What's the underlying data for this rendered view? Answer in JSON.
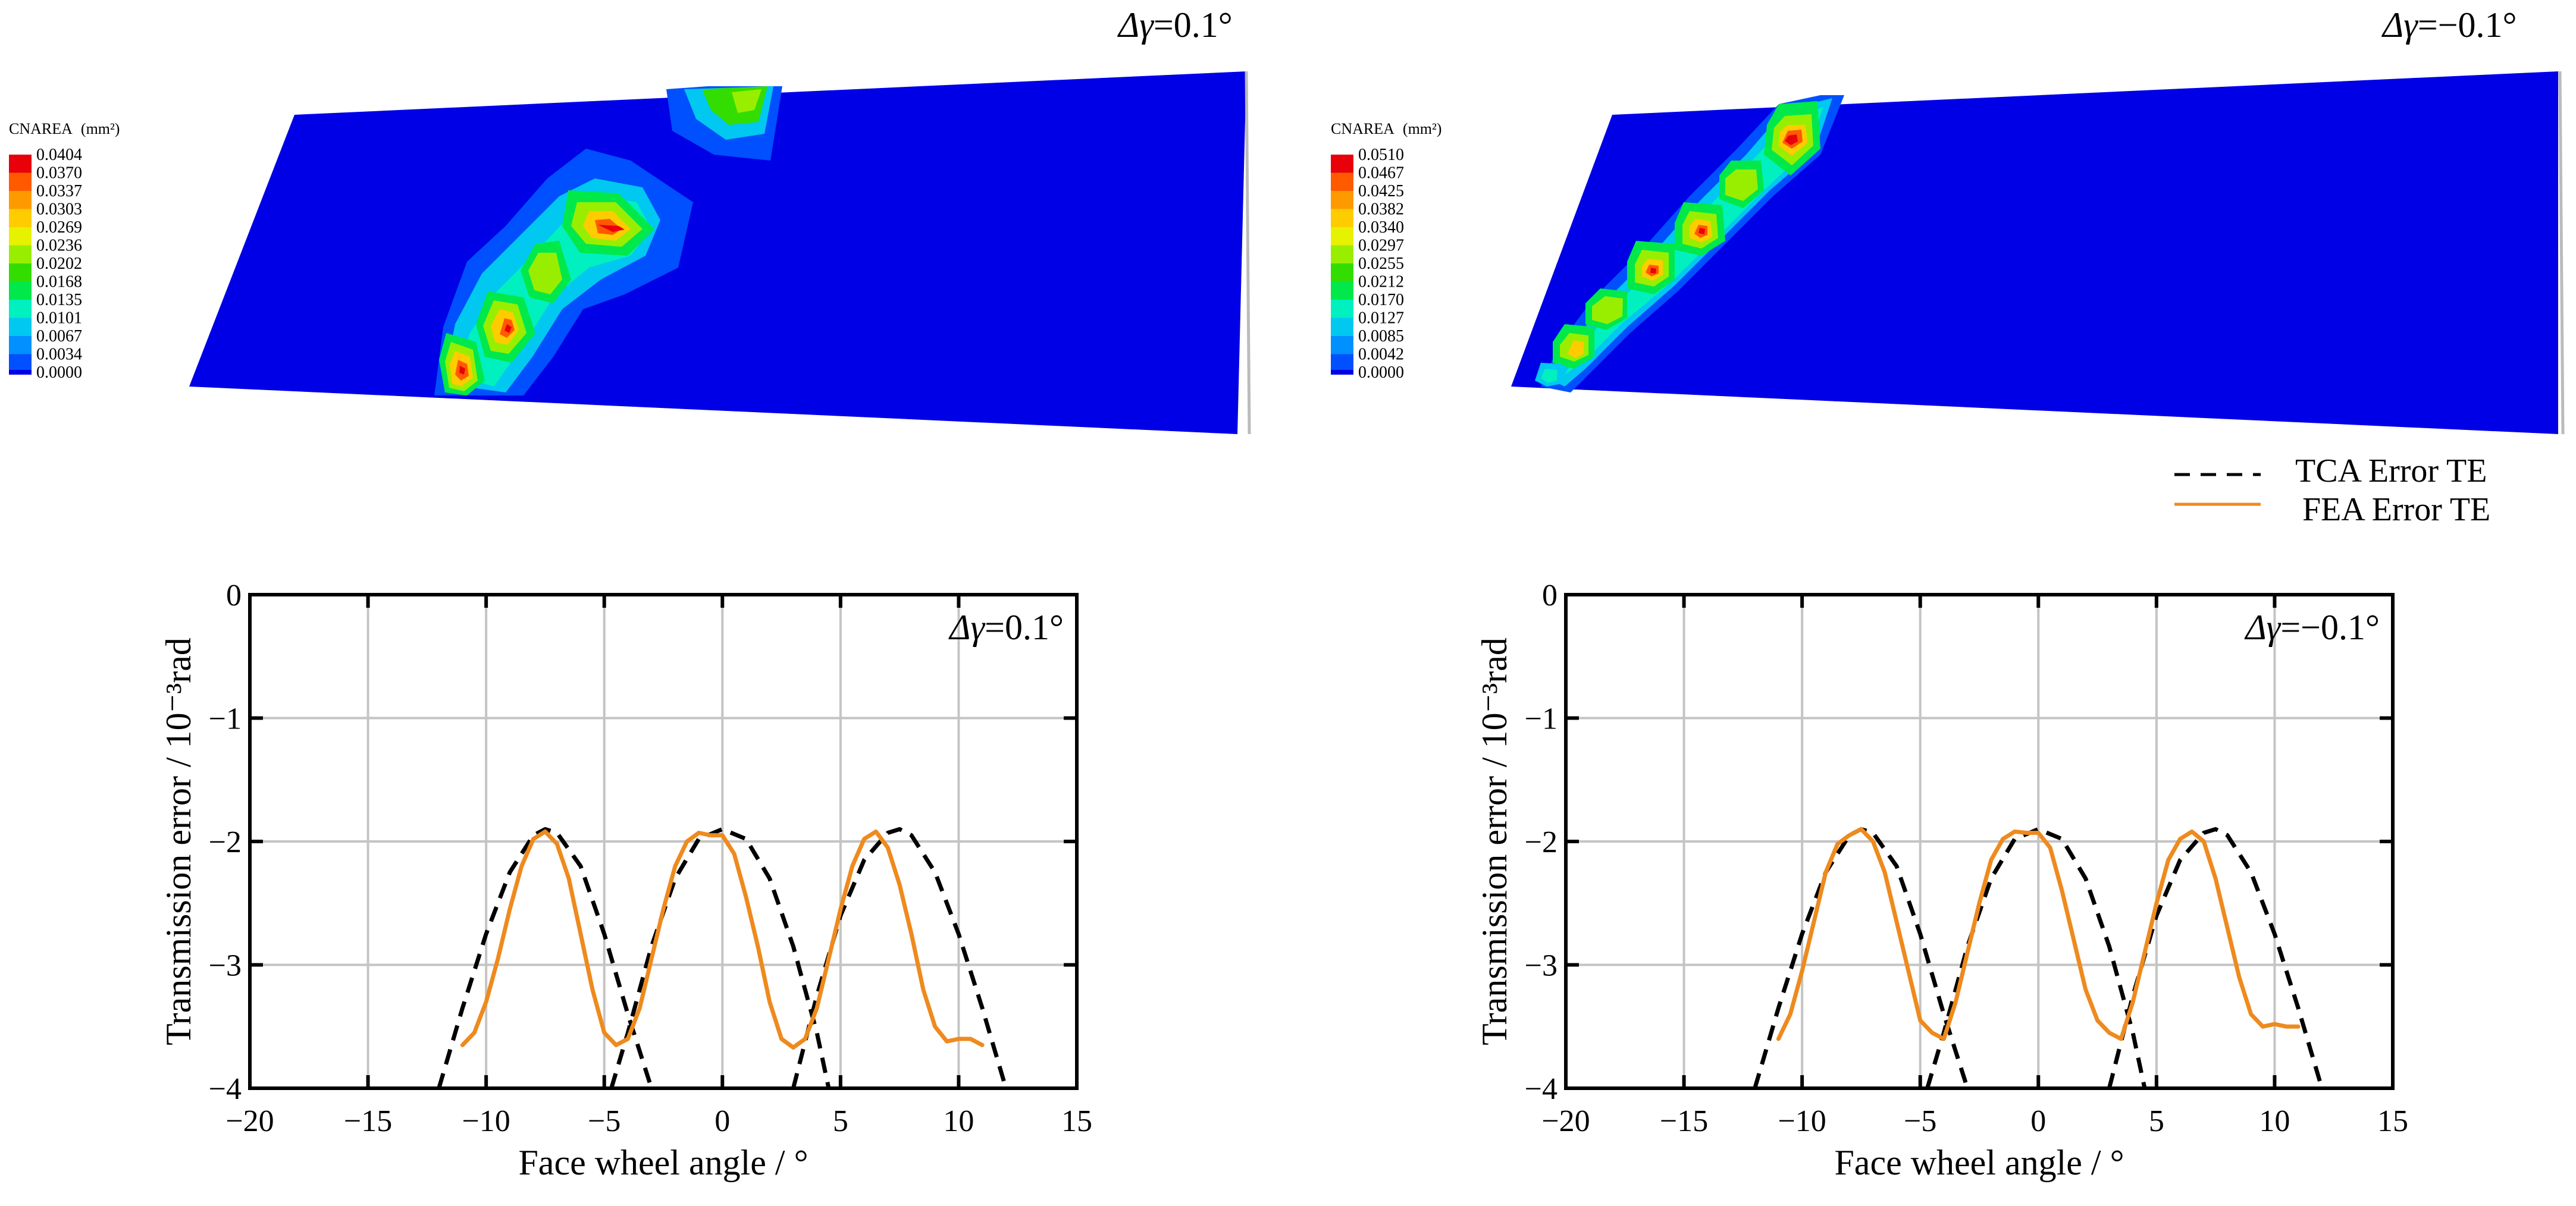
{
  "contour_plots": [
    {
      "title_prefix": "Δγ",
      "title_value": "=0.1°",
      "legend_title": "CNAREA",
      "legend_unit": "(mm²)",
      "legend_values": [
        "0.0404",
        "0.0370",
        "0.0337",
        "0.0303",
        "0.0269",
        "0.0236",
        "0.0202",
        "0.0168",
        "0.0135",
        "0.0101",
        "0.0067",
        "0.0034",
        "0.0000"
      ]
    },
    {
      "title_prefix": "Δγ",
      "title_value": "=−0.1°",
      "legend_title": "CNAREA",
      "legend_unit": "(mm²)",
      "legend_values": [
        "0.0510",
        "0.0467",
        "0.0425",
        "0.0382",
        "0.0340",
        "0.0297",
        "0.0255",
        "0.0212",
        "0.0170",
        "0.0127",
        "0.0085",
        "0.0042",
        "0.0000"
      ]
    }
  ],
  "legend_colors": [
    "#e8000b",
    "#ff5a00",
    "#ff9900",
    "#ffcc00",
    "#e6f200",
    "#99ee00",
    "#33dd00",
    "#00e84a",
    "#00f0c0",
    "#00c8f0",
    "#0090ff",
    "#0050ff",
    "#0000e6"
  ],
  "colors": {
    "plate": "#0000e6",
    "tca": "#000000",
    "fea": "#ee8a1e",
    "grid": "#c4c4c4"
  },
  "line_legend": {
    "tca": "TCA Error TE",
    "fea": "FEA Error TE"
  },
  "chart_data": [
    {
      "type": "line",
      "annotation": "Δγ=0.1°",
      "annotation_prefix": "Δγ",
      "annotation_value": "=0.1°",
      "xlabel": "Face wheel angle / °",
      "ylabel": "Transmission error / 10⁻³rad",
      "xlim": [
        -20,
        15
      ],
      "ylim": [
        -4,
        0
      ],
      "xticks": [
        "−20",
        "−15",
        "−10",
        "−5",
        "0",
        "5",
        "10",
        "15"
      ],
      "yticks": [
        "0",
        "−1",
        "−2",
        "−3",
        "−4"
      ],
      "xtick_values": [
        -20,
        -15,
        -10,
        -5,
        0,
        5,
        10,
        15
      ],
      "ytick_values": [
        0,
        -1,
        -2,
        -3,
        -4
      ],
      "grid": true,
      "series": [
        {
          "name": "TCA Error TE",
          "style": "dashed",
          "segments": [
            {
              "x": [
                -12.0,
                -11.0,
                -10.0,
                -9.0,
                -8.0,
                -7.5,
                -7.0,
                -6.0,
                -5.0,
                -4.0,
                -3.0
              ],
              "y": [
                -4.0,
                -3.35,
                -2.75,
                -2.25,
                -1.95,
                -1.9,
                -1.93,
                -2.2,
                -2.75,
                -3.4,
                -4.0
              ]
            },
            {
              "x": [
                -4.7,
                -4.0,
                -3.0,
                -2.0,
                -1.0,
                0.0,
                1.0,
                2.0,
                3.0,
                4.0,
                4.5
              ],
              "y": [
                -4.0,
                -3.55,
                -2.85,
                -2.3,
                -1.98,
                -1.9,
                -1.98,
                -2.3,
                -2.85,
                -3.55,
                -4.0
              ]
            },
            {
              "x": [
                3.0,
                4.0,
                5.0,
                6.0,
                7.0,
                7.5,
                8.0,
                9.0,
                10.0,
                11.0,
                12.0
              ],
              "y": [
                -4.0,
                -3.25,
                -2.6,
                -2.15,
                -1.93,
                -1.9,
                -1.95,
                -2.25,
                -2.75,
                -3.35,
                -4.0
              ]
            }
          ]
        },
        {
          "name": "FEA Error TE",
          "style": "solid",
          "segments": [
            {
              "x": [
                -11.0,
                -10.5,
                -10.0,
                -9.5,
                -9.0,
                -8.5,
                -8.0,
                -7.5,
                -7.0,
                -6.5,
                -6.0,
                -5.5,
                -5.0,
                -4.5,
                -4.0,
                -3.5,
                -3.0,
                -2.5,
                -2.0,
                -1.5,
                -1.0,
                -0.5,
                0.0,
                0.5,
                1.0,
                1.5,
                2.0,
                2.5,
                3.0,
                3.5,
                4.0,
                4.5,
                5.0,
                5.5,
                6.0,
                6.5,
                7.0,
                7.5,
                8.0,
                8.5,
                9.0,
                9.5,
                10.0,
                10.5,
                11.0
              ],
              "y": [
                -3.65,
                -3.55,
                -3.3,
                -2.95,
                -2.55,
                -2.2,
                -1.98,
                -1.92,
                -2.02,
                -2.3,
                -2.75,
                -3.2,
                -3.55,
                -3.65,
                -3.6,
                -3.35,
                -2.95,
                -2.55,
                -2.2,
                -2.0,
                -1.93,
                -1.95,
                -1.95,
                -2.1,
                -2.45,
                -2.85,
                -3.3,
                -3.6,
                -3.67,
                -3.6,
                -3.35,
                -2.95,
                -2.55,
                -2.2,
                -1.98,
                -1.92,
                -2.05,
                -2.35,
                -2.75,
                -3.2,
                -3.5,
                -3.62,
                -3.6,
                -3.6,
                -3.65
              ]
            }
          ]
        }
      ]
    },
    {
      "type": "line",
      "annotation": "Δγ=−0.1°",
      "annotation_prefix": "Δγ",
      "annotation_value": "=−0.1°",
      "xlabel": "Face wheel angle / °",
      "ylabel": "Transmission error / 10⁻³rad",
      "xlim": [
        -20,
        15
      ],
      "ylim": [
        -4,
        0
      ],
      "xticks": [
        "−20",
        "−15",
        "−10",
        "−5",
        "0",
        "5",
        "10",
        "15"
      ],
      "yticks": [
        "0",
        "−1",
        "−2",
        "−3",
        "−4"
      ],
      "xtick_values": [
        -20,
        -15,
        -10,
        -5,
        0,
        5,
        10,
        15
      ],
      "ytick_values": [
        0,
        -1,
        -2,
        -3,
        -4
      ],
      "grid": true,
      "series": [
        {
          "name": "TCA Error TE",
          "style": "dashed",
          "segments": [
            {
              "x": [
                -12.0,
                -11.0,
                -10.0,
                -9.0,
                -8.0,
                -7.5,
                -7.0,
                -6.0,
                -5.0,
                -4.0,
                -3.0
              ],
              "y": [
                -4.0,
                -3.35,
                -2.75,
                -2.25,
                -1.95,
                -1.9,
                -1.93,
                -2.2,
                -2.75,
                -3.4,
                -4.0
              ]
            },
            {
              "x": [
                -4.7,
                -4.0,
                -3.0,
                -2.0,
                -1.0,
                0.0,
                1.0,
                2.0,
                3.0,
                4.0,
                4.5
              ],
              "y": [
                -4.0,
                -3.55,
                -2.85,
                -2.3,
                -1.98,
                -1.9,
                -1.98,
                -2.3,
                -2.85,
                -3.55,
                -4.0
              ]
            },
            {
              "x": [
                3.0,
                4.0,
                5.0,
                6.0,
                7.0,
                7.5,
                8.0,
                9.0,
                10.0,
                11.0,
                12.0
              ],
              "y": [
                -4.0,
                -3.25,
                -2.6,
                -2.15,
                -1.93,
                -1.9,
                -1.95,
                -2.25,
                -2.75,
                -3.35,
                -4.0
              ]
            }
          ]
        },
        {
          "name": "FEA Error TE",
          "style": "solid",
          "segments": [
            {
              "x": [
                -11.0,
                -10.5,
                -10.0,
                -9.5,
                -9.0,
                -8.5,
                -8.0,
                -7.5,
                -7.0,
                -6.5,
                -6.0,
                -5.5,
                -5.0,
                -4.5,
                -4.0,
                -3.5,
                -3.0,
                -2.5,
                -2.0,
                -1.5,
                -1.0,
                -0.5,
                0.0,
                0.5,
                1.0,
                1.5,
                2.0,
                2.5,
                3.0,
                3.5,
                4.0,
                4.5,
                5.0,
                5.5,
                6.0,
                6.5,
                7.0,
                7.5,
                8.0,
                8.5,
                9.0,
                9.5,
                10.0,
                10.5,
                11.0
              ],
              "y": [
                -3.6,
                -3.4,
                -3.05,
                -2.65,
                -2.25,
                -2.02,
                -1.95,
                -1.9,
                -2.0,
                -2.25,
                -2.65,
                -3.05,
                -3.45,
                -3.55,
                -3.6,
                -3.3,
                -2.9,
                -2.5,
                -2.15,
                -1.98,
                -1.92,
                -1.93,
                -1.93,
                -2.05,
                -2.4,
                -2.8,
                -3.2,
                -3.45,
                -3.55,
                -3.6,
                -3.3,
                -2.9,
                -2.5,
                -2.15,
                -1.98,
                -1.92,
                -2.0,
                -2.3,
                -2.7,
                -3.1,
                -3.4,
                -3.5,
                -3.48,
                -3.5,
                -3.5
              ]
            }
          ]
        }
      ]
    }
  ]
}
